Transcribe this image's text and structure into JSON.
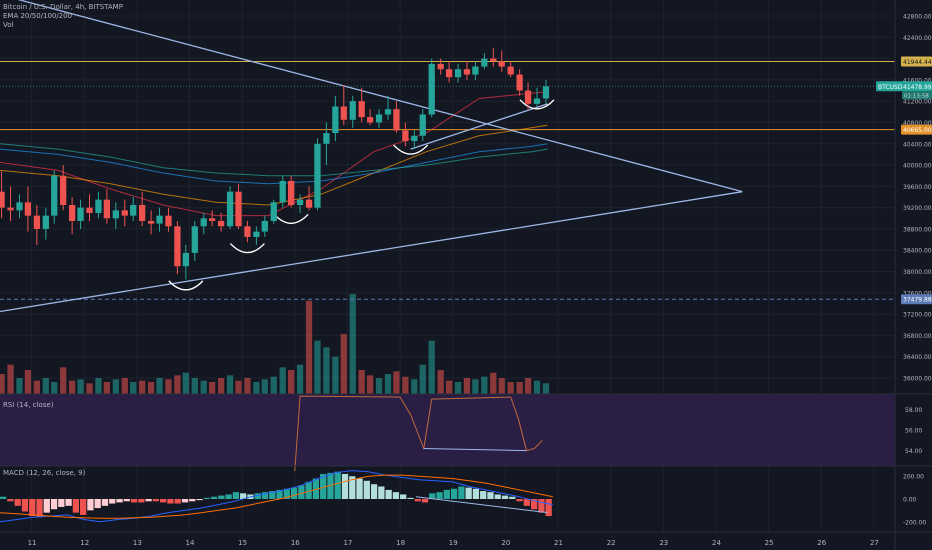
{
  "header": {
    "symbol_line": "Bitcoin / U.S. Dollar, 4h, BITSTAMP",
    "ema_line": "EMA 20/50/100/200",
    "vol_line": "Vol"
  },
  "rsi_title": "RSI (14, close)",
  "macd_title": "MACD (12, 26, close, 9)",
  "colors": {
    "background": "#131722",
    "up": "#26a69a",
    "down": "#ef5350",
    "trendline": "#9db8e6",
    "resistance": "#d4b24c",
    "support": "#e3922b",
    "rsi_band": "#2a1e45",
    "rsi_line": "#c06a3c",
    "white_arc": "#ffffff"
  },
  "chart_data": [
    {
      "type": "candlestick",
      "symbol": "BTCUSD",
      "timeframe": "4h",
      "exchange": "BITSTAMP",
      "price_axis": {
        "ticks": [
          42800,
          42400,
          42000,
          41600,
          41200,
          40800,
          40400,
          40000,
          39600,
          39200,
          38800,
          38400,
          38000,
          37600,
          37200,
          36800,
          36400,
          36000
        ],
        "tick_labels": [
          "42800.00",
          "42400.00",
          "42000.00",
          "41600.00",
          "41200.00",
          "40800.00",
          "40400.00",
          "40000.00",
          "39600.00",
          "39200.00",
          "38800.00",
          "38400.00",
          "38000.00",
          "37600.00",
          "37200.00",
          "36800.00",
          "36400.00",
          "36000.00"
        ],
        "ylim": [
          35700,
          43100
        ]
      },
      "date_axis": {
        "labels": [
          "11",
          "12",
          "13",
          "14",
          "15",
          "16",
          "17",
          "18",
          "19",
          "20",
          "21",
          "22",
          "23",
          "24",
          "25",
          "26",
          "27"
        ],
        "xlim": [
          10.4,
          27.4
        ]
      },
      "price_tags": [
        {
          "label": "41944.44",
          "value": 41944.44,
          "kind": "resistance"
        },
        {
          "label": "BTCUSD",
          "value": 41478.99,
          "price": "41478.99",
          "sub": "01:13:58",
          "kind": "last"
        },
        {
          "label": "40665.00",
          "value": 40665.0,
          "kind": "support"
        },
        {
          "label": "37479.88",
          "value": 37479.88,
          "kind": "dashed"
        }
      ],
      "candles": [
        {
          "t": 10.43,
          "o": 39500,
          "h": 39880,
          "l": 39000,
          "c": 39200
        },
        {
          "t": 10.6,
          "o": 39200,
          "h": 39600,
          "l": 38950,
          "c": 39150
        },
        {
          "t": 10.77,
          "o": 39150,
          "h": 39450,
          "l": 39000,
          "c": 39300
        },
        {
          "t": 10.93,
          "o": 39300,
          "h": 39600,
          "l": 38750,
          "c": 39050
        },
        {
          "t": 11.1,
          "o": 39050,
          "h": 39250,
          "l": 38500,
          "c": 38800
        },
        {
          "t": 11.27,
          "o": 38800,
          "h": 39200,
          "l": 38600,
          "c": 39050
        },
        {
          "t": 11.43,
          "o": 39050,
          "h": 39900,
          "l": 38900,
          "c": 39800
        },
        {
          "t": 11.6,
          "o": 39800,
          "h": 40000,
          "l": 39150,
          "c": 39250
        },
        {
          "t": 11.77,
          "o": 39250,
          "h": 39400,
          "l": 38700,
          "c": 38950
        },
        {
          "t": 11.93,
          "o": 38950,
          "h": 39350,
          "l": 38800,
          "c": 39200
        },
        {
          "t": 12.1,
          "o": 39200,
          "h": 39450,
          "l": 38950,
          "c": 39100
        },
        {
          "t": 12.27,
          "o": 39100,
          "h": 39500,
          "l": 39000,
          "c": 39350
        },
        {
          "t": 12.43,
          "o": 39350,
          "h": 39550,
          "l": 38900,
          "c": 39000
        },
        {
          "t": 12.6,
          "o": 39000,
          "h": 39300,
          "l": 38800,
          "c": 39150
        },
        {
          "t": 12.77,
          "o": 39150,
          "h": 39350,
          "l": 38850,
          "c": 39050
        },
        {
          "t": 12.93,
          "o": 39050,
          "h": 39400,
          "l": 38950,
          "c": 39250
        },
        {
          "t": 13.1,
          "o": 39250,
          "h": 39500,
          "l": 38850,
          "c": 38950
        },
        {
          "t": 13.27,
          "o": 38950,
          "h": 39150,
          "l": 38700,
          "c": 38900
        },
        {
          "t": 13.43,
          "o": 38900,
          "h": 39200,
          "l": 38750,
          "c": 39050
        },
        {
          "t": 13.6,
          "o": 39050,
          "h": 39200,
          "l": 38750,
          "c": 38850
        },
        {
          "t": 13.77,
          "o": 38850,
          "h": 38950,
          "l": 37950,
          "c": 38100
        },
        {
          "t": 13.93,
          "o": 38100,
          "h": 38500,
          "l": 37850,
          "c": 38350
        },
        {
          "t": 14.1,
          "o": 38350,
          "h": 38950,
          "l": 38200,
          "c": 38850
        },
        {
          "t": 14.27,
          "o": 38850,
          "h": 39100,
          "l": 38700,
          "c": 39000
        },
        {
          "t": 14.43,
          "o": 39000,
          "h": 39150,
          "l": 38850,
          "c": 38950
        },
        {
          "t": 14.6,
          "o": 38950,
          "h": 39100,
          "l": 38750,
          "c": 38850
        },
        {
          "t": 14.77,
          "o": 38850,
          "h": 39600,
          "l": 38800,
          "c": 39500
        },
        {
          "t": 14.93,
          "o": 39500,
          "h": 39650,
          "l": 38800,
          "c": 38850
        },
        {
          "t": 15.1,
          "o": 38850,
          "h": 38950,
          "l": 38550,
          "c": 38650
        },
        {
          "t": 15.27,
          "o": 38650,
          "h": 38850,
          "l": 38500,
          "c": 38750
        },
        {
          "t": 15.43,
          "o": 38750,
          "h": 39050,
          "l": 38650,
          "c": 38950
        },
        {
          "t": 15.6,
          "o": 38950,
          "h": 39350,
          "l": 38900,
          "c": 39300
        },
        {
          "t": 15.77,
          "o": 39300,
          "h": 39800,
          "l": 39200,
          "c": 39700
        },
        {
          "t": 15.93,
          "o": 39700,
          "h": 39800,
          "l": 39200,
          "c": 39250
        },
        {
          "t": 16.1,
          "o": 39250,
          "h": 39450,
          "l": 39100,
          "c": 39350
        },
        {
          "t": 16.27,
          "o": 39350,
          "h": 39600,
          "l": 39150,
          "c": 39200
        },
        {
          "t": 16.43,
          "o": 39200,
          "h": 40500,
          "l": 39150,
          "c": 40400
        },
        {
          "t": 16.6,
          "o": 40400,
          "h": 40800,
          "l": 40000,
          "c": 40600
        },
        {
          "t": 16.77,
          "o": 40600,
          "h": 41300,
          "l": 40450,
          "c": 41100
        },
        {
          "t": 16.93,
          "o": 41100,
          "h": 41500,
          "l": 40750,
          "c": 40850
        },
        {
          "t": 17.1,
          "o": 40850,
          "h": 41300,
          "l": 40700,
          "c": 41200
        },
        {
          "t": 17.27,
          "o": 41200,
          "h": 41450,
          "l": 40800,
          "c": 40900
        },
        {
          "t": 17.43,
          "o": 40900,
          "h": 41050,
          "l": 40750,
          "c": 40800
        },
        {
          "t": 17.6,
          "o": 40800,
          "h": 41050,
          "l": 40700,
          "c": 40950
        },
        {
          "t": 17.77,
          "o": 40950,
          "h": 41300,
          "l": 40850,
          "c": 41050
        },
        {
          "t": 17.93,
          "o": 41050,
          "h": 41200,
          "l": 40600,
          "c": 40650
        },
        {
          "t": 18.1,
          "o": 40650,
          "h": 40800,
          "l": 40350,
          "c": 40450
        },
        {
          "t": 18.27,
          "o": 40450,
          "h": 40650,
          "l": 40300,
          "c": 40550
        },
        {
          "t": 18.43,
          "o": 40550,
          "h": 41050,
          "l": 40450,
          "c": 40950
        },
        {
          "t": 18.6,
          "o": 40950,
          "h": 42000,
          "l": 40900,
          "c": 41900
        },
        {
          "t": 18.77,
          "o": 41900,
          "h": 42000,
          "l": 41700,
          "c": 41800
        },
        {
          "t": 18.93,
          "o": 41800,
          "h": 41950,
          "l": 41550,
          "c": 41650
        },
        {
          "t": 19.1,
          "o": 41650,
          "h": 41900,
          "l": 41550,
          "c": 41800
        },
        {
          "t": 19.27,
          "o": 41800,
          "h": 41950,
          "l": 41600,
          "c": 41700
        },
        {
          "t": 19.43,
          "o": 41700,
          "h": 41950,
          "l": 41600,
          "c": 41850
        },
        {
          "t": 19.6,
          "o": 41850,
          "h": 42100,
          "l": 41800,
          "c": 42000
        },
        {
          "t": 19.77,
          "o": 42000,
          "h": 42200,
          "l": 41850,
          "c": 41950
        },
        {
          "t": 19.93,
          "o": 41950,
          "h": 42150,
          "l": 41750,
          "c": 41850
        },
        {
          "t": 20.1,
          "o": 41850,
          "h": 41950,
          "l": 41650,
          "c": 41700
        },
        {
          "t": 20.27,
          "o": 41700,
          "h": 41800,
          "l": 41300,
          "c": 41400
        },
        {
          "t": 20.43,
          "o": 41400,
          "h": 41550,
          "l": 41050,
          "c": 41150
        },
        {
          "t": 20.6,
          "o": 41150,
          "h": 41450,
          "l": 41100,
          "c": 41250
        },
        {
          "t": 20.77,
          "o": 41250,
          "h": 41600,
          "l": 41150,
          "c": 41479
        }
      ],
      "ema": [
        {
          "name": "EMA 20",
          "color": "#f23645",
          "points": [
            [
              10.4,
              40050
            ],
            [
              11.5,
              39900
            ],
            [
              12.5,
              39550
            ],
            [
              13.5,
              39250
            ],
            [
              14.5,
              39050
            ],
            [
              15.5,
              39050
            ],
            [
              16.5,
              39550
            ],
            [
              17.5,
              40250
            ],
            [
              18.5,
              40600
            ],
            [
              19.5,
              41250
            ],
            [
              20.5,
              41350
            ],
            [
              20.8,
              41380
            ]
          ]
        },
        {
          "name": "EMA 50",
          "color": "#ff9800",
          "points": [
            [
              10.4,
              39900
            ],
            [
              11.5,
              39800
            ],
            [
              12.5,
              39650
            ],
            [
              13.5,
              39450
            ],
            [
              14.5,
              39300
            ],
            [
              15.5,
              39250
            ],
            [
              16.5,
              39450
            ],
            [
              17.5,
              39850
            ],
            [
              18.5,
              40250
            ],
            [
              19.5,
              40550
            ],
            [
              20.5,
              40700
            ],
            [
              20.8,
              40750
            ]
          ]
        },
        {
          "name": "EMA 100",
          "color": "#2196f3",
          "points": [
            [
              10.4,
              40300
            ],
            [
              11.5,
              40200
            ],
            [
              12.5,
              40050
            ],
            [
              13.5,
              39850
            ],
            [
              14.5,
              39700
            ],
            [
              15.5,
              39650
            ],
            [
              16.5,
              39700
            ],
            [
              17.5,
              39850
            ],
            [
              18.5,
              40050
            ],
            [
              19.5,
              40250
            ],
            [
              20.5,
              40350
            ],
            [
              20.8,
              40400
            ]
          ]
        },
        {
          "name": "EMA 200",
          "color": "#26a69a",
          "points": [
            [
              10.4,
              40400
            ],
            [
              11.5,
              40300
            ],
            [
              12.5,
              40150
            ],
            [
              13.5,
              39950
            ],
            [
              14.5,
              39850
            ],
            [
              15.5,
              39800
            ],
            [
              16.5,
              39800
            ],
            [
              17.5,
              39900
            ],
            [
              18.5,
              40000
            ],
            [
              19.5,
              40150
            ],
            [
              20.5,
              40250
            ],
            [
              20.8,
              40300
            ]
          ]
        }
      ],
      "volume": [
        15,
        22,
        12,
        18,
        10,
        12,
        9,
        20,
        10,
        11,
        8,
        12,
        9,
        11,
        12,
        9,
        10,
        9,
        12,
        11,
        14,
        16,
        12,
        10,
        9,
        12,
        14,
        10,
        12,
        9,
        11,
        13,
        20,
        18,
        22,
        70,
        40,
        35,
        28,
        45,
        75,
        18,
        14,
        12,
        15,
        17,
        13,
        11,
        22,
        40,
        18,
        10,
        9,
        12,
        11,
        13,
        16,
        12,
        9,
        9,
        12,
        10,
        8
      ]
    },
    {
      "type": "line",
      "name": "RSI (14, close)",
      "y_ticks": [
        58.0,
        56.0,
        54.0
      ],
      "y_tick_labels": [
        "58.00",
        "56.00",
        "54.00"
      ],
      "ylim": [
        52.5,
        59.5
      ],
      "x": [
        16.0,
        16.1,
        18.0,
        18.2,
        18.45,
        18.6,
        20.1,
        20.25,
        20.4,
        20.55,
        20.7
      ],
      "values": [
        52.0,
        59.3,
        59.2,
        57.5,
        54.2,
        59.0,
        59.2,
        57.0,
        54.0,
        54.2,
        55.0
      ]
    },
    {
      "type": "bar",
      "name": "MACD (12, 26, close, 9)",
      "y_ticks": [
        200.0,
        0.0,
        -200.0
      ],
      "y_tick_labels": [
        "200.00",
        "0.00",
        "-200.00"
      ],
      "ylim": [
        -290,
        290
      ],
      "histogram": [
        20,
        -20,
        -60,
        -110,
        -150,
        -160,
        -120,
        -90,
        -70,
        -60,
        -120,
        -140,
        -100,
        -80,
        -60,
        -40,
        -30,
        -20,
        -30,
        -30,
        -20,
        -20,
        -30,
        -40,
        -40,
        -30,
        -20,
        -10,
        10,
        20,
        30,
        40,
        60,
        50,
        40,
        50,
        60,
        70,
        80,
        90,
        100,
        120,
        150,
        180,
        220,
        230,
        240,
        220,
        200,
        180,
        160,
        130,
        110,
        80,
        60,
        40,
        10,
        -20,
        -30,
        50,
        60,
        80,
        90,
        110,
        100,
        90,
        70,
        60,
        40,
        30,
        20,
        -20,
        -60,
        -90,
        -120,
        -150
      ],
      "macd": [
        -200,
        -180,
        -160,
        -150,
        -140,
        -180,
        -200,
        -180,
        -170,
        -150,
        -120,
        -100,
        -80,
        -50,
        -20,
        20,
        50,
        80,
        120,
        180,
        230,
        250,
        240,
        210,
        190,
        170,
        160,
        150,
        110,
        80,
        50,
        20,
        -20,
        -50
      ],
      "signal": [
        -120,
        -130,
        -140,
        -150,
        -160,
        -165,
        -170,
        -170,
        -165,
        -160,
        -150,
        -140,
        -120,
        -100,
        -80,
        -50,
        -20,
        10,
        50,
        90,
        130,
        170,
        200,
        210,
        210,
        200,
        190,
        180,
        160,
        140,
        110,
        80,
        50,
        20
      ]
    }
  ]
}
